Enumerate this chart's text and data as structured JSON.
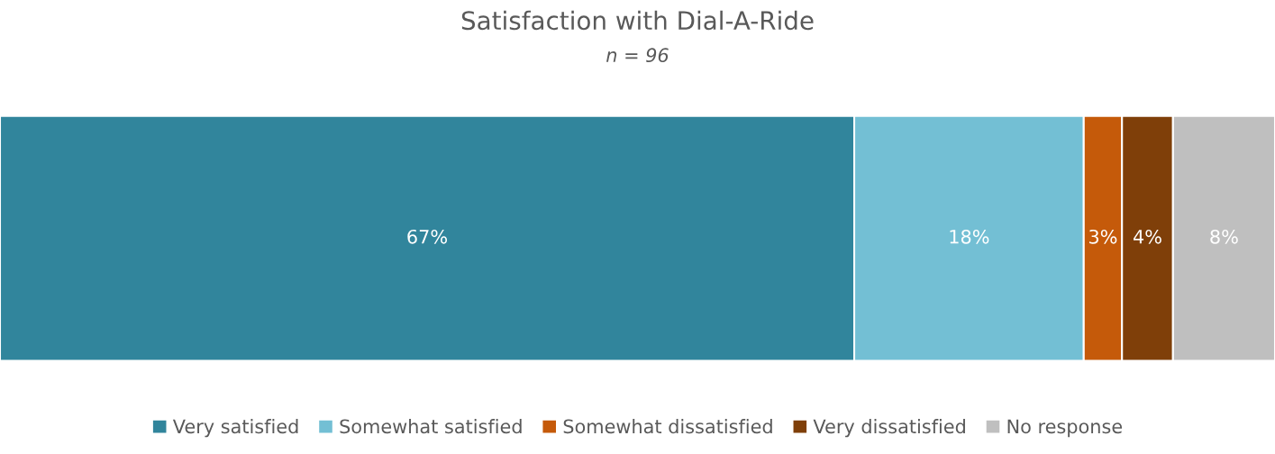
{
  "chart_data": {
    "type": "bar",
    "orientation": "horizontal",
    "stacked": true,
    "title": "Satisfaction with Dial-A-Ride",
    "subtitle": "n = 96",
    "categories": [
      null
    ],
    "series": [
      {
        "name": "Very satisfied",
        "color": "#31859c",
        "values": [
          67
        ],
        "value_labels": [
          "67%"
        ]
      },
      {
        "name": "Somewhat satisfied",
        "color": "#73bfd4",
        "values": [
          18
        ],
        "value_labels": [
          "18%"
        ]
      },
      {
        "name": "Somewhat dissatisfied",
        "color": "#c55a0a",
        "values": [
          3
        ],
        "value_labels": [
          "3%"
        ]
      },
      {
        "name": "Very dissatisfied",
        "color": "#7f3f09",
        "values": [
          4
        ],
        "value_labels": [
          "4%"
        ]
      },
      {
        "name": "No response",
        "color": "#bfbfbf",
        "values": [
          8
        ],
        "value_labels": [
          "8%"
        ]
      }
    ],
    "legend": "bottom"
  }
}
